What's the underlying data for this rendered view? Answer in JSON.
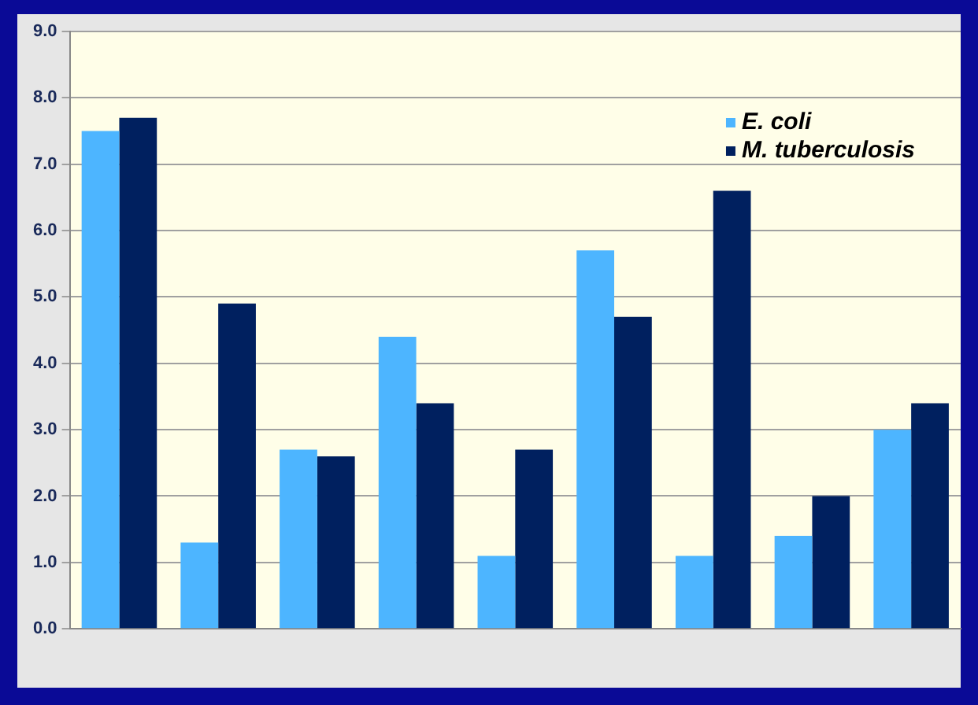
{
  "chart_data": {
    "type": "bar",
    "categories": [
      null,
      null,
      null,
      null,
      null,
      null,
      null,
      null,
      null
    ],
    "series": [
      {
        "name": "E. coli",
        "color": "#4db5ff",
        "values": [
          7.5,
          1.3,
          2.7,
          4.4,
          1.1,
          5.7,
          1.1,
          1.4,
          3.0
        ]
      },
      {
        "name": "M. tuberculosis",
        "color": "#00205f",
        "values": [
          7.7,
          4.9,
          2.6,
          3.4,
          2.7,
          4.7,
          6.6,
          2.0,
          3.4
        ]
      }
    ],
    "ylim": [
      0,
      9
    ],
    "yticks": [
      {
        "value": 0,
        "label": "0.0"
      },
      {
        "value": 1,
        "label": "1.0"
      },
      {
        "value": 2,
        "label": "2.0"
      },
      {
        "value": 3,
        "label": "3.0"
      },
      {
        "value": 4,
        "label": "4.0"
      },
      {
        "value": 5,
        "label": "5.0"
      },
      {
        "value": 6,
        "label": "6.0"
      },
      {
        "value": 7,
        "label": "7.0"
      },
      {
        "value": 8,
        "label": "8.0"
      },
      {
        "value": 9,
        "label": "9.0"
      }
    ],
    "grid": "y",
    "legend": "top right"
  }
}
